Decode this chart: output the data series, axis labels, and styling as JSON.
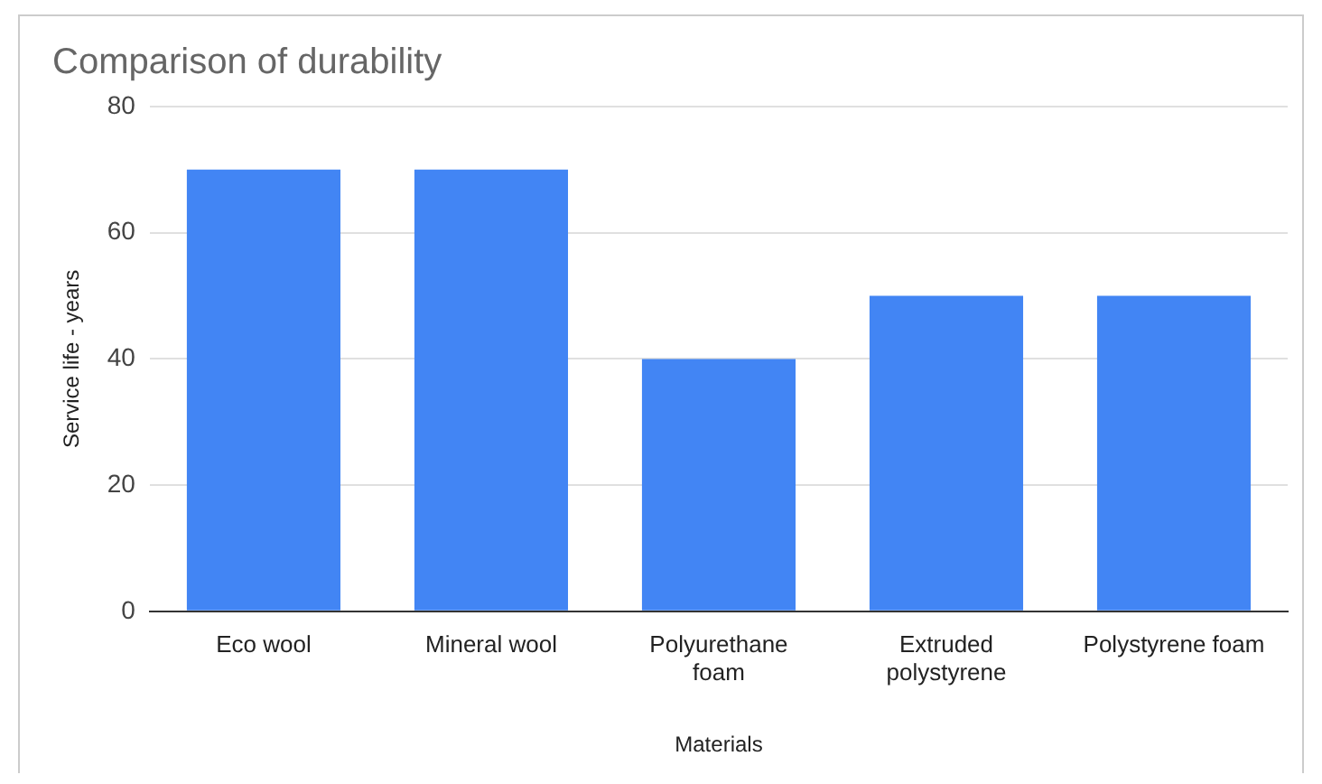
{
  "chart_data": {
    "type": "bar",
    "title": "Comparison of durability",
    "xlabel": "Materials",
    "ylabel": "Service life - years",
    "categories": [
      "Eco wool",
      "Mineral wool",
      "Polyurethane foam",
      "Extruded polystyrene",
      "Polystyrene foam"
    ],
    "values": [
      70,
      70,
      40,
      50,
      50
    ],
    "color": "#4285f4",
    "ylim": [
      0,
      80
    ],
    "yticks": [
      0,
      20,
      40,
      60,
      80
    ],
    "grid": "y",
    "legend": false
  }
}
